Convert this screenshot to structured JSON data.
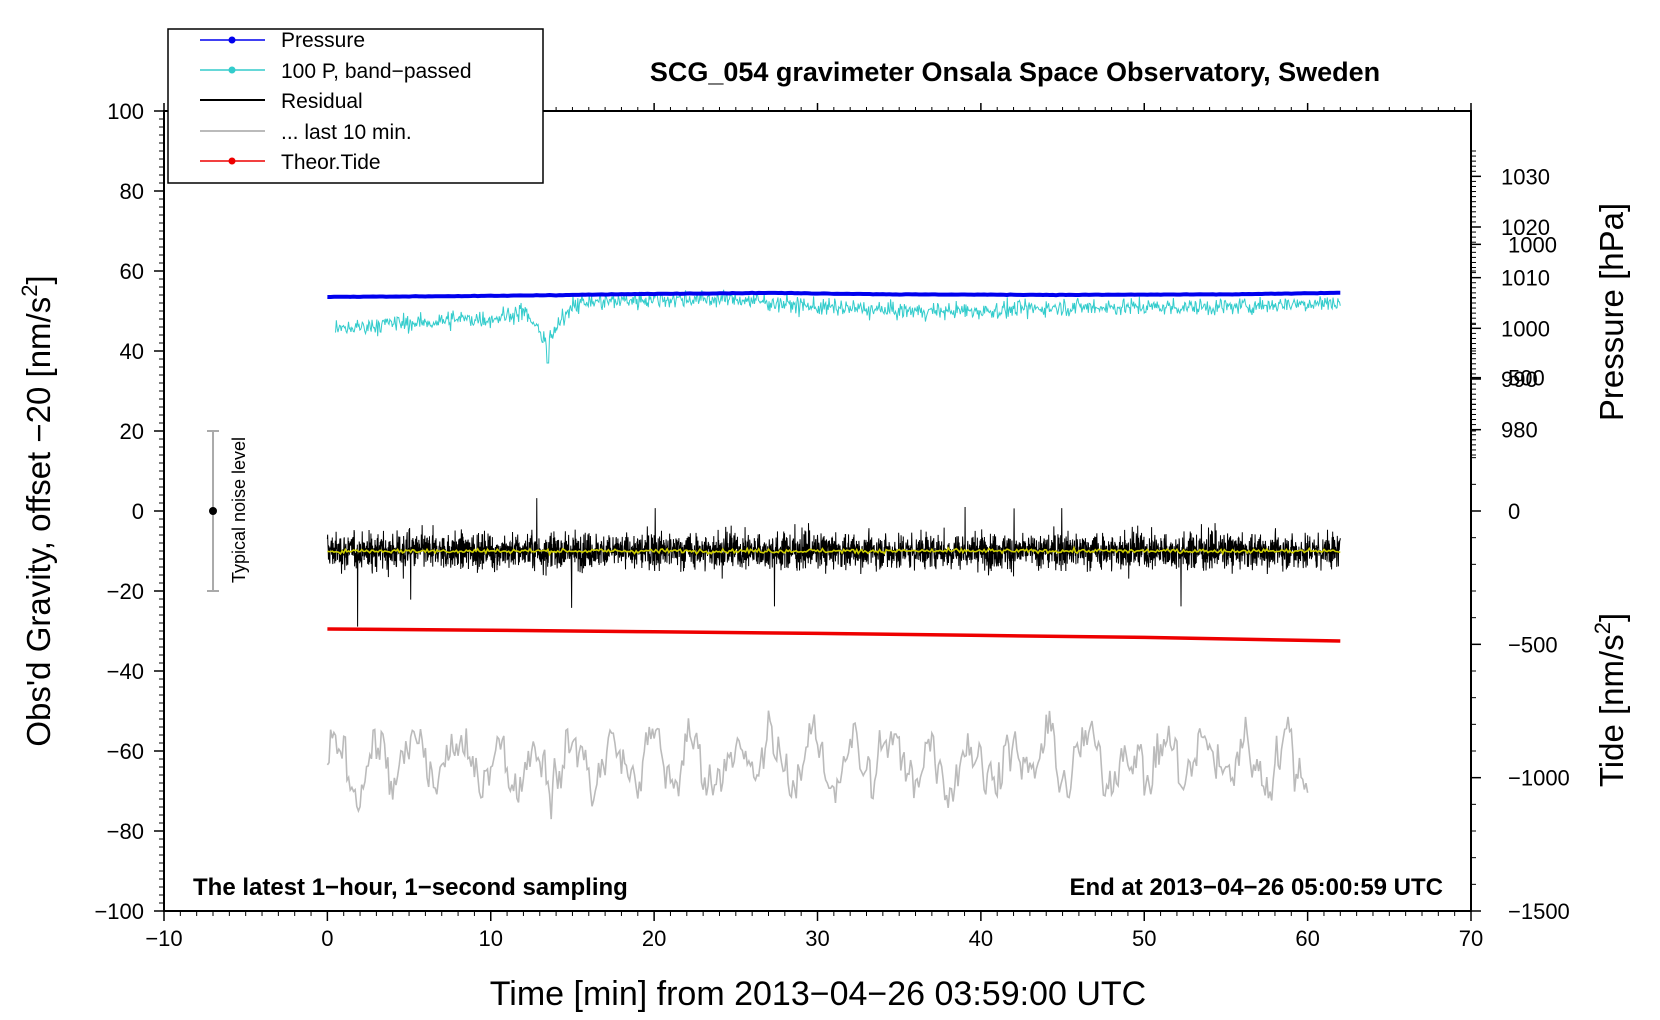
{
  "colors": {
    "pressure": "#0000ee",
    "bandpassed": "#33cccc",
    "residual": "#000000",
    "running_mean": "#cccc00",
    "last10": "#bbbbbb",
    "tide": "#ee0000",
    "noise_bar": "#aaaaaa"
  },
  "chart_data": {
    "type": "line",
    "title": "SCG_054 gravimeter Onsala Space Observatory, Sweden",
    "xlabel": "Time [min] from 2013−04−26 03:59:00 UTC",
    "ylabel_main": "Obs'd Gravity, offset −20 [nm/s",
    "ylabel_sup": "2",
    "ylabel_end": "]",
    "ylabel_pressure": "Pressure [hPa]",
    "ylabel_tide_main": "Tide [nm/s",
    "ylabel_tide_sup": "2",
    "ylabel_tide_end": "]",
    "xlim": [
      -10,
      70
    ],
    "ylim": [
      -100,
      100
    ],
    "pressure_axis": {
      "range": [
        975,
        1035
      ],
      "span_data_y": [
        90,
        14
      ]
    },
    "tide_axis": {
      "range": [
        -1500,
        1500
      ],
      "span_data_y": [
        -100,
        100
      ]
    },
    "x_ticks": [
      "−10",
      "0",
      "10",
      "20",
      "30",
      "40",
      "50",
      "60",
      "70"
    ],
    "y_ticks": [
      "−100",
      "−80",
      "−60",
      "−40",
      "−20",
      "0",
      "20",
      "40",
      "60",
      "80",
      "100"
    ],
    "pressure_ticks": [
      "980",
      "990",
      "1000",
      "1010",
      "1020",
      "1030"
    ],
    "tide_ticks": [
      "−1500",
      "−1000",
      "−500",
      "0",
      "500",
      "1000"
    ],
    "legend_position": "top-left",
    "legend": [
      "Pressure",
      "100 P, band−passed",
      "Residual",
      "... last 10 min.",
      "Theor.Tide"
    ],
    "annotation_left": "The latest 1−hour, 1−second sampling",
    "annotation_right": "End at 2013−04−26 05:00:59 UTC",
    "noise_label": "Typical noise level",
    "noise_bar": {
      "x": -7,
      "center": 0,
      "low": -20,
      "high": 20
    },
    "series": [
      {
        "name": "Pressure",
        "unit": "hPa",
        "x": [
          0,
          10,
          20,
          27,
          35,
          45,
          55,
          62
        ],
        "values": [
          1006.2,
          1006.4,
          1006.8,
          1007.0,
          1006.7,
          1006.6,
          1006.7,
          1007.0
        ]
      },
      {
        "name": "100 P, band-passed",
        "unit": "nm/s2",
        "x": [
          0,
          2,
          4,
          6,
          8,
          10,
          12,
          13.5,
          15,
          20,
          25,
          30,
          35,
          40,
          45,
          50,
          55,
          60,
          62
        ],
        "values": [
          45,
          46,
          47,
          47,
          48,
          48,
          50,
          42,
          52,
          53,
          53,
          51,
          50,
          50,
          51,
          51,
          51,
          52,
          52
        ]
      },
      {
        "name": "Residual",
        "unit": "nm/s2",
        "x": [
          0,
          62
        ],
        "values": [
          -10,
          -10
        ]
      },
      {
        "name": "Residual running mean",
        "unit": "nm/s2",
        "x": [
          0,
          62
        ],
        "values": [
          -10,
          -10
        ]
      },
      {
        "name": "... last 10 min.",
        "unit": "nm/s2",
        "x": [
          0,
          60
        ],
        "values": [
          -63,
          -62
        ]
      },
      {
        "name": "Theor.Tide",
        "unit": "nm/s2",
        "x": [
          0,
          10,
          20,
          30,
          40,
          50,
          62
        ],
        "values": [
          -29.5,
          -29.8,
          -30.2,
          -30.6,
          -31.1,
          -31.6,
          -32.5
        ]
      }
    ]
  }
}
